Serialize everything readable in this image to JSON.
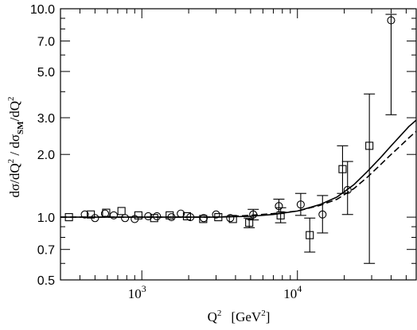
{
  "chart_data": {
    "type": "scatter",
    "xscale": "log",
    "yscale": "log",
    "xlim": [
      300,
      58000
    ],
    "ylim": [
      0.5,
      10.0
    ],
    "x_ticks": [
      {
        "value": 1000,
        "base": "10",
        "exp": "3"
      },
      {
        "value": 10000,
        "base": "10",
        "exp": "4"
      }
    ],
    "y_ticks": [
      {
        "value": 0.5,
        "label": "0.5"
      },
      {
        "value": 0.7,
        "label": "0.7"
      },
      {
        "value": 1.0,
        "label": "1.0"
      },
      {
        "value": 2.0,
        "label": "2.0"
      },
      {
        "value": 3.0,
        "label": "3.0"
      },
      {
        "value": 5.0,
        "label": "5.0"
      },
      {
        "value": 7.0,
        "label": "7.0"
      },
      {
        "value": 10.0,
        "label": "10.0"
      }
    ],
    "xlabel": {
      "main": "Q",
      "sup": "2",
      "unit_open": "[GeV",
      "unit_sup": "2",
      "unit_close": "]"
    },
    "ylabel": {
      "part1": "dσ/dQ",
      "sup1": "2",
      "part2": " / dσ",
      "sub": "SM",
      "part3": "/dQ",
      "sup2": "2"
    },
    "series": [
      {
        "marker": "square",
        "points": [
          {
            "x": 340,
            "y": 1.0
          },
          {
            "x": 470,
            "y": 1.03
          },
          {
            "x": 590,
            "y": 1.05
          },
          {
            "x": 740,
            "y": 1.07
          },
          {
            "x": 950,
            "y": 1.02
          },
          {
            "x": 1200,
            "y": 0.99
          },
          {
            "x": 1510,
            "y": 1.02
          },
          {
            "x": 1950,
            "y": 1.01
          },
          {
            "x": 2480,
            "y": 0.98
          },
          {
            "x": 3100,
            "y": 1.0
          },
          {
            "x": 3850,
            "y": 0.98
          },
          {
            "x": 4900,
            "y": 0.94,
            "err": [
              0.89,
              0.99
            ]
          },
          {
            "x": 7800,
            "y": 1.02,
            "err": [
              0.94,
              1.11
            ]
          },
          {
            "x": 12000,
            "y": 0.82,
            "err": [
              0.68,
              0.99
            ]
          },
          {
            "x": 19500,
            "y": 1.7,
            "err": [
              1.3,
              2.2
            ]
          },
          {
            "x": 29000,
            "y": 2.2,
            "err": [
              0.6,
              3.9
            ]
          }
        ]
      },
      {
        "marker": "circle",
        "points": [
          {
            "x": 430,
            "y": 1.03
          },
          {
            "x": 500,
            "y": 0.99
          },
          {
            "x": 580,
            "y": 1.04
          },
          {
            "x": 660,
            "y": 1.02
          },
          {
            "x": 780,
            "y": 0.99
          },
          {
            "x": 900,
            "y": 0.98
          },
          {
            "x": 1100,
            "y": 1.01
          },
          {
            "x": 1250,
            "y": 1.01
          },
          {
            "x": 1550,
            "y": 1.0
          },
          {
            "x": 1780,
            "y": 1.04
          },
          {
            "x": 2050,
            "y": 1.0
          },
          {
            "x": 2500,
            "y": 0.99
          },
          {
            "x": 3000,
            "y": 1.03
          },
          {
            "x": 3700,
            "y": 0.99
          },
          {
            "x": 5200,
            "y": 1.03,
            "err": [
              0.97,
              1.09
            ]
          },
          {
            "x": 7600,
            "y": 1.13,
            "err": [
              1.04,
              1.22
            ]
          },
          {
            "x": 10500,
            "y": 1.15,
            "err": [
              1.02,
              1.3
            ]
          },
          {
            "x": 14500,
            "y": 1.03,
            "err": [
              0.84,
              1.27
            ]
          },
          {
            "x": 21000,
            "y": 1.35,
            "err": [
              1.03,
              1.85
            ]
          },
          {
            "x": 40000,
            "y": 8.8,
            "err": [
              3.1,
              9.4
            ]
          }
        ]
      }
    ],
    "curves": [
      {
        "style": "solid",
        "points": [
          [
            300,
            1.0
          ],
          [
            1000,
            1.0
          ],
          [
            3000,
            1.0
          ],
          [
            5000,
            1.01
          ],
          [
            7000,
            1.03
          ],
          [
            10000,
            1.07
          ],
          [
            14000,
            1.15
          ],
          [
            18000,
            1.25
          ],
          [
            23000,
            1.43
          ],
          [
            28000,
            1.65
          ],
          [
            34000,
            1.92
          ],
          [
            40000,
            2.2
          ],
          [
            46000,
            2.46
          ],
          [
            52000,
            2.72
          ],
          [
            58000,
            2.92
          ]
        ]
      },
      {
        "style": "dashed",
        "points": [
          [
            300,
            1.0
          ],
          [
            1000,
            1.0
          ],
          [
            3000,
            1.0
          ],
          [
            5000,
            1.02
          ],
          [
            7000,
            1.04
          ],
          [
            10000,
            1.07
          ],
          [
            14000,
            1.14
          ],
          [
            18000,
            1.22
          ],
          [
            23000,
            1.37
          ],
          [
            28000,
            1.55
          ],
          [
            34000,
            1.78
          ],
          [
            40000,
            2.0
          ],
          [
            46000,
            2.2
          ],
          [
            52000,
            2.4
          ],
          [
            58000,
            2.58
          ]
        ]
      }
    ]
  }
}
